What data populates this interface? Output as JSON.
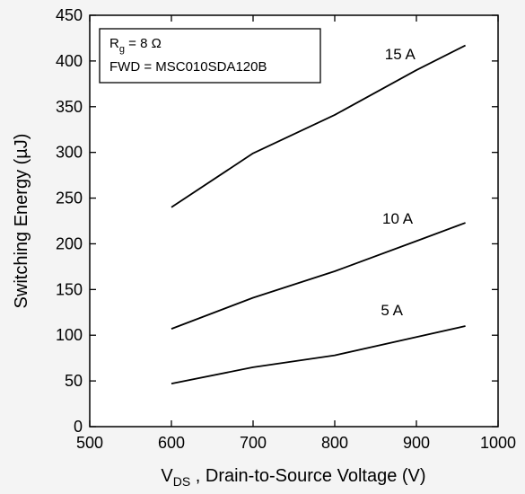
{
  "chart_data": {
    "type": "line",
    "xlabel": {
      "main": "V",
      "sub": "DS",
      "rest": " , Drain-to-Source Voltage (V)"
    },
    "ylabel": "Switching Energy (µJ)",
    "xlim": [
      500,
      1000
    ],
    "ylim": [
      0,
      450
    ],
    "xticks": [
      500,
      600,
      700,
      800,
      900,
      1000
    ],
    "yticks": [
      0,
      50,
      100,
      150,
      200,
      250,
      300,
      350,
      400,
      450
    ],
    "grid": false,
    "annotation": {
      "line1_main": "R",
      "line1_sub": "g",
      "line1_rest": " = 8 Ω",
      "line2": "FWD = MSC010SDA120B"
    },
    "series": [
      {
        "name": "15 A",
        "x": [
          600,
          700,
          800,
          900,
          960
        ],
        "y": [
          240,
          299,
          341,
          390,
          417
        ]
      },
      {
        "name": "10 A",
        "x": [
          600,
          700,
          800,
          900,
          960
        ],
        "y": [
          107,
          141,
          170,
          203,
          223
        ]
      },
      {
        "name": "5 A",
        "x": [
          600,
          700,
          800,
          900,
          960
        ],
        "y": [
          47,
          65,
          78,
          98,
          110
        ]
      }
    ]
  }
}
